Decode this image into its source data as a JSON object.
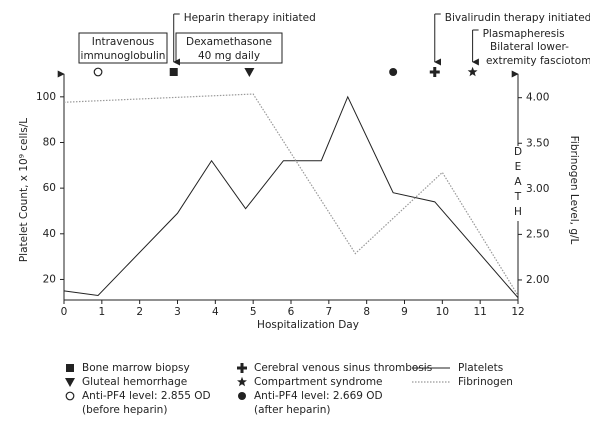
{
  "chart_data": {
    "type": "line",
    "x_label": "Hospitalization Day",
    "y_label": "Platelet Count, x 10⁹ cells/L",
    "y2_label": "Fibrinogen Level, g/L",
    "xlim": [
      0,
      12
    ],
    "xticks": [
      0,
      1,
      2,
      3,
      4,
      5,
      6,
      7,
      8,
      9,
      10,
      11,
      12
    ],
    "ylim": [
      11,
      110
    ],
    "yticks": [
      20,
      40,
      60,
      80,
      100
    ],
    "y2lim": [
      1.78,
      4.26
    ],
    "y2ticks": [
      {
        "value": 2,
        "label": "2.00"
      },
      {
        "value": 2.5,
        "label": "2.50"
      },
      {
        "value": 3,
        "label": "3.00"
      },
      {
        "value": 3.5,
        "label": "3.50"
      },
      {
        "value": 4,
        "label": "4.00"
      }
    ],
    "series": [
      {
        "name": "Platelets",
        "color": "#222222",
        "x": [
          0,
          0.9,
          3,
          3.9,
          4.8,
          5.8,
          6.8,
          7.5,
          8.7,
          9.8,
          12
        ],
        "values": [
          15,
          13,
          49,
          72,
          51,
          72,
          72,
          100,
          58,
          54,
          12
        ]
      },
      {
        "name": "Fibrinogen",
        "color": "#999999",
        "axis": "y2",
        "x": [
          0,
          5,
          7.7,
          10,
          12
        ],
        "values": [
          3.95,
          4.04,
          2.29,
          3.18,
          1.83
        ]
      }
    ],
    "markers": [
      {
        "symbol": "square",
        "x": 2.9,
        "label": [
          "Bone marrow biopsy"
        ]
      },
      {
        "symbol": "triangle",
        "x": 4.9,
        "label": [
          "Gluteal hemorrhage"
        ]
      },
      {
        "symbol": "open-circle",
        "x": 0.9,
        "label": [
          "Anti-PF4 level: 2.855 OD",
          "(before heparin)"
        ]
      },
      {
        "symbol": "plus",
        "x": 9.8,
        "label": [
          "Cerebral venous sinus thrombosis"
        ]
      },
      {
        "symbol": "star",
        "x": 10.8,
        "label": [
          "Compartment syndrome"
        ]
      },
      {
        "symbol": "filled-circle",
        "x": 8.7,
        "label": [
          "Anti-PF4 level: 2.669 OD",
          "(after heparin)"
        ]
      }
    ],
    "arrows": [
      {
        "text": "Heparin therapy initiated",
        "x": 2.9
      },
      {
        "text": "Bivalirudin therapy initiated",
        "x": 9.8
      },
      {
        "text": "Plasmapheresis",
        "x": 10.8
      }
    ],
    "boxes": [
      {
        "lines": [
          "Intravenous",
          "immunoglobulin"
        ]
      },
      {
        "lines": [
          "Dexamethasone",
          "40 mg daily"
        ]
      }
    ],
    "notes": [
      [
        "Bilateral lower-",
        "extremity fasciotomy"
      ]
    ],
    "death_label": "DEATH"
  }
}
